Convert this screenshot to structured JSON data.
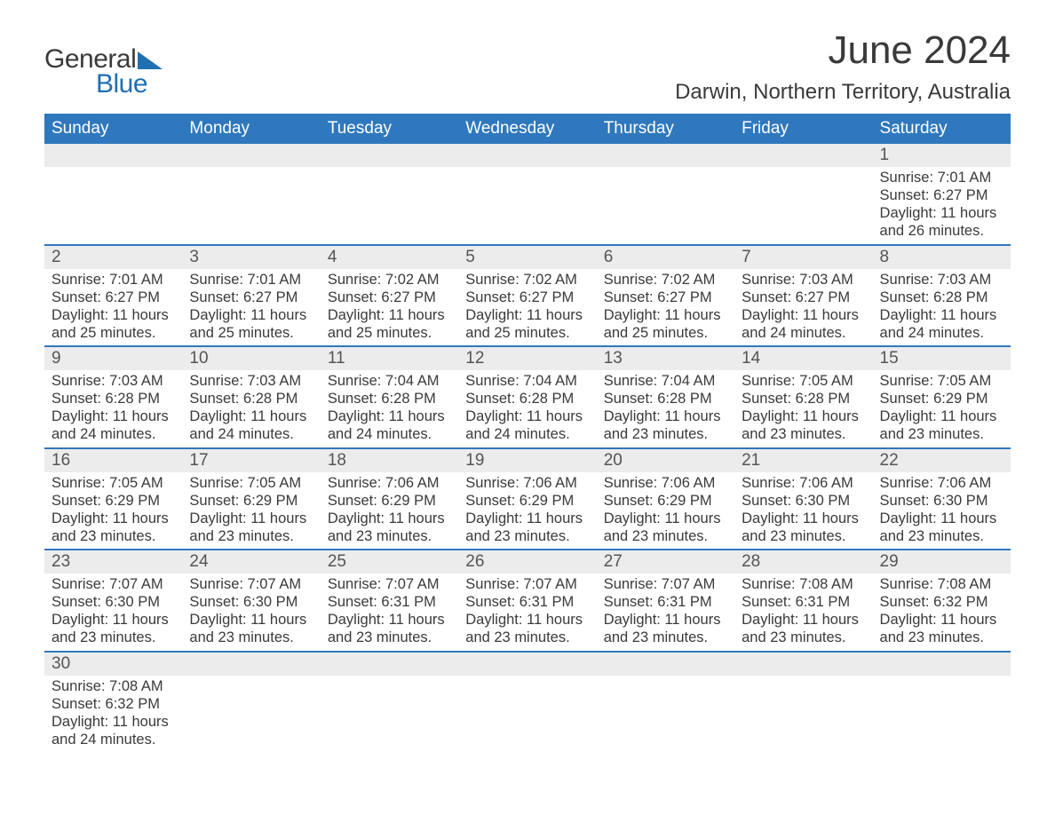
{
  "logo": {
    "text_general": "General",
    "text_blue": "Blue"
  },
  "title": "June 2024",
  "location": "Darwin, Northern Territory, Australia",
  "colors": {
    "header_bg": "#2f78bd",
    "header_text": "#ffffff",
    "daynum_bg": "#ececec",
    "text": "#3a3a3a",
    "logo_blue": "#1f6fb2",
    "border": "#2f78bd"
  },
  "days_of_week": [
    "Sunday",
    "Monday",
    "Tuesday",
    "Wednesday",
    "Thursday",
    "Friday",
    "Saturday"
  ],
  "weeks": [
    [
      {
        "num": "",
        "sunrise": "",
        "sunset": "",
        "daylight": ""
      },
      {
        "num": "",
        "sunrise": "",
        "sunset": "",
        "daylight": ""
      },
      {
        "num": "",
        "sunrise": "",
        "sunset": "",
        "daylight": ""
      },
      {
        "num": "",
        "sunrise": "",
        "sunset": "",
        "daylight": ""
      },
      {
        "num": "",
        "sunrise": "",
        "sunset": "",
        "daylight": ""
      },
      {
        "num": "",
        "sunrise": "",
        "sunset": "",
        "daylight": ""
      },
      {
        "num": "1",
        "sunrise": "Sunrise: 7:01 AM",
        "sunset": "Sunset: 6:27 PM",
        "daylight": "Daylight: 11 hours and 26 minutes."
      }
    ],
    [
      {
        "num": "2",
        "sunrise": "Sunrise: 7:01 AM",
        "sunset": "Sunset: 6:27 PM",
        "daylight": "Daylight: 11 hours and 25 minutes."
      },
      {
        "num": "3",
        "sunrise": "Sunrise: 7:01 AM",
        "sunset": "Sunset: 6:27 PM",
        "daylight": "Daylight: 11 hours and 25 minutes."
      },
      {
        "num": "4",
        "sunrise": "Sunrise: 7:02 AM",
        "sunset": "Sunset: 6:27 PM",
        "daylight": "Daylight: 11 hours and 25 minutes."
      },
      {
        "num": "5",
        "sunrise": "Sunrise: 7:02 AM",
        "sunset": "Sunset: 6:27 PM",
        "daylight": "Daylight: 11 hours and 25 minutes."
      },
      {
        "num": "6",
        "sunrise": "Sunrise: 7:02 AM",
        "sunset": "Sunset: 6:27 PM",
        "daylight": "Daylight: 11 hours and 25 minutes."
      },
      {
        "num": "7",
        "sunrise": "Sunrise: 7:03 AM",
        "sunset": "Sunset: 6:27 PM",
        "daylight": "Daylight: 11 hours and 24 minutes."
      },
      {
        "num": "8",
        "sunrise": "Sunrise: 7:03 AM",
        "sunset": "Sunset: 6:28 PM",
        "daylight": "Daylight: 11 hours and 24 minutes."
      }
    ],
    [
      {
        "num": "9",
        "sunrise": "Sunrise: 7:03 AM",
        "sunset": "Sunset: 6:28 PM",
        "daylight": "Daylight: 11 hours and 24 minutes."
      },
      {
        "num": "10",
        "sunrise": "Sunrise: 7:03 AM",
        "sunset": "Sunset: 6:28 PM",
        "daylight": "Daylight: 11 hours and 24 minutes."
      },
      {
        "num": "11",
        "sunrise": "Sunrise: 7:04 AM",
        "sunset": "Sunset: 6:28 PM",
        "daylight": "Daylight: 11 hours and 24 minutes."
      },
      {
        "num": "12",
        "sunrise": "Sunrise: 7:04 AM",
        "sunset": "Sunset: 6:28 PM",
        "daylight": "Daylight: 11 hours and 24 minutes."
      },
      {
        "num": "13",
        "sunrise": "Sunrise: 7:04 AM",
        "sunset": "Sunset: 6:28 PM",
        "daylight": "Daylight: 11 hours and 23 minutes."
      },
      {
        "num": "14",
        "sunrise": "Sunrise: 7:05 AM",
        "sunset": "Sunset: 6:28 PM",
        "daylight": "Daylight: 11 hours and 23 minutes."
      },
      {
        "num": "15",
        "sunrise": "Sunrise: 7:05 AM",
        "sunset": "Sunset: 6:29 PM",
        "daylight": "Daylight: 11 hours and 23 minutes."
      }
    ],
    [
      {
        "num": "16",
        "sunrise": "Sunrise: 7:05 AM",
        "sunset": "Sunset: 6:29 PM",
        "daylight": "Daylight: 11 hours and 23 minutes."
      },
      {
        "num": "17",
        "sunrise": "Sunrise: 7:05 AM",
        "sunset": "Sunset: 6:29 PM",
        "daylight": "Daylight: 11 hours and 23 minutes."
      },
      {
        "num": "18",
        "sunrise": "Sunrise: 7:06 AM",
        "sunset": "Sunset: 6:29 PM",
        "daylight": "Daylight: 11 hours and 23 minutes."
      },
      {
        "num": "19",
        "sunrise": "Sunrise: 7:06 AM",
        "sunset": "Sunset: 6:29 PM",
        "daylight": "Daylight: 11 hours and 23 minutes."
      },
      {
        "num": "20",
        "sunrise": "Sunrise: 7:06 AM",
        "sunset": "Sunset: 6:29 PM",
        "daylight": "Daylight: 11 hours and 23 minutes."
      },
      {
        "num": "21",
        "sunrise": "Sunrise: 7:06 AM",
        "sunset": "Sunset: 6:30 PM",
        "daylight": "Daylight: 11 hours and 23 minutes."
      },
      {
        "num": "22",
        "sunrise": "Sunrise: 7:06 AM",
        "sunset": "Sunset: 6:30 PM",
        "daylight": "Daylight: 11 hours and 23 minutes."
      }
    ],
    [
      {
        "num": "23",
        "sunrise": "Sunrise: 7:07 AM",
        "sunset": "Sunset: 6:30 PM",
        "daylight": "Daylight: 11 hours and 23 minutes."
      },
      {
        "num": "24",
        "sunrise": "Sunrise: 7:07 AM",
        "sunset": "Sunset: 6:30 PM",
        "daylight": "Daylight: 11 hours and 23 minutes."
      },
      {
        "num": "25",
        "sunrise": "Sunrise: 7:07 AM",
        "sunset": "Sunset: 6:31 PM",
        "daylight": "Daylight: 11 hours and 23 minutes."
      },
      {
        "num": "26",
        "sunrise": "Sunrise: 7:07 AM",
        "sunset": "Sunset: 6:31 PM",
        "daylight": "Daylight: 11 hours and 23 minutes."
      },
      {
        "num": "27",
        "sunrise": "Sunrise: 7:07 AM",
        "sunset": "Sunset: 6:31 PM",
        "daylight": "Daylight: 11 hours and 23 minutes."
      },
      {
        "num": "28",
        "sunrise": "Sunrise: 7:08 AM",
        "sunset": "Sunset: 6:31 PM",
        "daylight": "Daylight: 11 hours and 23 minutes."
      },
      {
        "num": "29",
        "sunrise": "Sunrise: 7:08 AM",
        "sunset": "Sunset: 6:32 PM",
        "daylight": "Daylight: 11 hours and 23 minutes."
      }
    ],
    [
      {
        "num": "30",
        "sunrise": "Sunrise: 7:08 AM",
        "sunset": "Sunset: 6:32 PM",
        "daylight": "Daylight: 11 hours and 24 minutes."
      },
      {
        "num": "",
        "sunrise": "",
        "sunset": "",
        "daylight": ""
      },
      {
        "num": "",
        "sunrise": "",
        "sunset": "",
        "daylight": ""
      },
      {
        "num": "",
        "sunrise": "",
        "sunset": "",
        "daylight": ""
      },
      {
        "num": "",
        "sunrise": "",
        "sunset": "",
        "daylight": ""
      },
      {
        "num": "",
        "sunrise": "",
        "sunset": "",
        "daylight": ""
      },
      {
        "num": "",
        "sunrise": "",
        "sunset": "",
        "daylight": ""
      }
    ]
  ]
}
